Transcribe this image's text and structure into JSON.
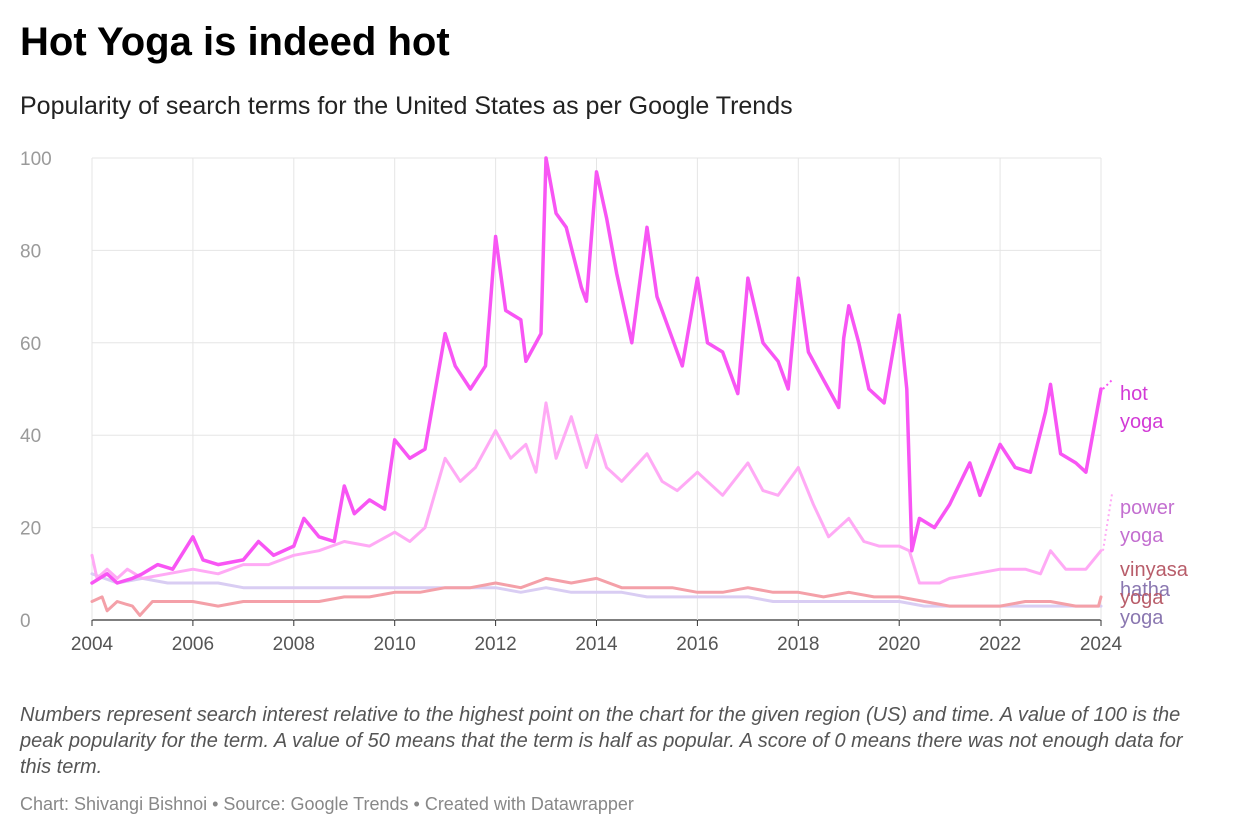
{
  "header": {
    "title": "Hot Yoga is indeed hot",
    "subtitle": "Popularity of search terms for the United States as per Google Trends"
  },
  "notes": "Numbers represent search interest relative to the highest point on the chart for the given region (US) and time. A value of 100 is the peak popularity for the term. A value of 50 means that the term is half as popular. A score of 0 means there was not enough data for this term.",
  "footer": {
    "byline": "Chart: Shivangi Bishnoi • Source: Google Trends • Created with Datawrapper"
  },
  "chart_data": {
    "type": "line",
    "xlim": [
      2004,
      2024
    ],
    "ylim": [
      0,
      100
    ],
    "grid": true,
    "x_ticks": [
      "2004",
      "2006",
      "2008",
      "2010",
      "2012",
      "2014",
      "2016",
      "2018",
      "2020",
      "2022",
      "2024"
    ],
    "y_ticks": [
      "0",
      "20",
      "40",
      "60",
      "80",
      "100"
    ],
    "series": [
      {
        "name": "hatha yoga",
        "label_lines": [
          "hatha",
          "yoga"
        ],
        "color": "#d9cdf3",
        "label_color": "#8a77b0",
        "width": 3,
        "points": [
          [
            2004,
            10
          ],
          [
            2004.5,
            8
          ],
          [
            2005,
            9
          ],
          [
            2005.5,
            8
          ],
          [
            2006,
            8
          ],
          [
            2006.5,
            8
          ],
          [
            2007,
            7
          ],
          [
            2007.5,
            7
          ],
          [
            2008,
            7
          ],
          [
            2008.5,
            7
          ],
          [
            2009,
            7
          ],
          [
            2009.5,
            7
          ],
          [
            2010,
            7
          ],
          [
            2010.5,
            7
          ],
          [
            2011,
            7
          ],
          [
            2011.5,
            7
          ],
          [
            2012,
            7
          ],
          [
            2012.5,
            6
          ],
          [
            2013,
            7
          ],
          [
            2013.5,
            6
          ],
          [
            2014,
            6
          ],
          [
            2014.5,
            6
          ],
          [
            2015,
            5
          ],
          [
            2015.5,
            5
          ],
          [
            2016,
            5
          ],
          [
            2016.5,
            5
          ],
          [
            2017,
            5
          ],
          [
            2017.5,
            4
          ],
          [
            2018,
            4
          ],
          [
            2018.5,
            4
          ],
          [
            2019,
            4
          ],
          [
            2019.5,
            4
          ],
          [
            2020,
            4
          ],
          [
            2020.5,
            3
          ],
          [
            2021,
            3
          ],
          [
            2021.5,
            3
          ],
          [
            2022,
            3
          ],
          [
            2022.5,
            3
          ],
          [
            2023,
            3
          ],
          [
            2023.5,
            3
          ],
          [
            2024,
            3
          ]
        ]
      },
      {
        "name": "vinyasa yoga",
        "label_lines": [
          "vinyasa",
          "yoga"
        ],
        "color": "#f4a0a8",
        "label_color": "#b85d6a",
        "width": 3,
        "points": [
          [
            2004,
            4
          ],
          [
            2004.2,
            5
          ],
          [
            2004.3,
            2
          ],
          [
            2004.5,
            4
          ],
          [
            2004.8,
            3
          ],
          [
            2004.95,
            1
          ],
          [
            2005.2,
            4
          ],
          [
            2005.5,
            4
          ],
          [
            2006,
            4
          ],
          [
            2006.5,
            3
          ],
          [
            2007,
            4
          ],
          [
            2007.5,
            4
          ],
          [
            2008,
            4
          ],
          [
            2008.5,
            4
          ],
          [
            2009,
            5
          ],
          [
            2009.5,
            5
          ],
          [
            2010,
            6
          ],
          [
            2010.5,
            6
          ],
          [
            2011,
            7
          ],
          [
            2011.5,
            7
          ],
          [
            2012,
            8
          ],
          [
            2012.5,
            7
          ],
          [
            2013,
            9
          ],
          [
            2013.5,
            8
          ],
          [
            2014,
            9
          ],
          [
            2014.5,
            7
          ],
          [
            2015,
            7
          ],
          [
            2015.5,
            7
          ],
          [
            2016,
            6
          ],
          [
            2016.5,
            6
          ],
          [
            2017,
            7
          ],
          [
            2017.5,
            6
          ],
          [
            2018,
            6
          ],
          [
            2018.5,
            5
          ],
          [
            2019,
            6
          ],
          [
            2019.5,
            5
          ],
          [
            2020,
            5
          ],
          [
            2020.5,
            4
          ],
          [
            2021,
            3
          ],
          [
            2021.5,
            3
          ],
          [
            2022,
            3
          ],
          [
            2022.5,
            4
          ],
          [
            2023,
            4
          ],
          [
            2023.5,
            3
          ],
          [
            2023.95,
            3
          ],
          [
            2024,
            5
          ]
        ]
      },
      {
        "name": "power yoga",
        "label_lines": [
          "power",
          "yoga"
        ],
        "color": "#ffaaf5",
        "label_color": "#c36fd0",
        "width": 3,
        "points": [
          [
            2004,
            14
          ],
          [
            2004.1,
            9
          ],
          [
            2004.3,
            11
          ],
          [
            2004.5,
            9
          ],
          [
            2004.7,
            11
          ],
          [
            2005,
            9
          ],
          [
            2005.5,
            10
          ],
          [
            2006,
            11
          ],
          [
            2006.5,
            10
          ],
          [
            2007,
            12
          ],
          [
            2007.5,
            12
          ],
          [
            2008,
            14
          ],
          [
            2008.5,
            15
          ],
          [
            2009,
            17
          ],
          [
            2009.5,
            16
          ],
          [
            2010,
            19
          ],
          [
            2010.3,
            17
          ],
          [
            2010.6,
            20
          ],
          [
            2011,
            35
          ],
          [
            2011.3,
            30
          ],
          [
            2011.6,
            33
          ],
          [
            2012,
            41
          ],
          [
            2012.3,
            35
          ],
          [
            2012.6,
            38
          ],
          [
            2012.8,
            32
          ],
          [
            2013,
            47
          ],
          [
            2013.2,
            35
          ],
          [
            2013.5,
            44
          ],
          [
            2013.8,
            33
          ],
          [
            2014,
            40
          ],
          [
            2014.2,
            33
          ],
          [
            2014.5,
            30
          ],
          [
            2015,
            36
          ],
          [
            2015.3,
            30
          ],
          [
            2015.6,
            28
          ],
          [
            2016,
            32
          ],
          [
            2016.5,
            27
          ],
          [
            2017,
            34
          ],
          [
            2017.3,
            28
          ],
          [
            2017.6,
            27
          ],
          [
            2018,
            33
          ],
          [
            2018.3,
            25
          ],
          [
            2018.6,
            18
          ],
          [
            2019,
            22
          ],
          [
            2019.3,
            17
          ],
          [
            2019.6,
            16
          ],
          [
            2020,
            16
          ],
          [
            2020.2,
            15
          ],
          [
            2020.4,
            8
          ],
          [
            2020.8,
            8
          ],
          [
            2021,
            9
          ],
          [
            2021.5,
            10
          ],
          [
            2022,
            11
          ],
          [
            2022.5,
            11
          ],
          [
            2022.8,
            10
          ],
          [
            2023,
            15
          ],
          [
            2023.3,
            11
          ],
          [
            2023.7,
            11
          ],
          [
            2024,
            15
          ]
        ]
      },
      {
        "name": "hot yoga",
        "label_lines": [
          "hot",
          "yoga"
        ],
        "color": "#f855f4",
        "label_color": "#d23ad6",
        "width": 3.5,
        "points": [
          [
            2004,
            8
          ],
          [
            2004.3,
            10
          ],
          [
            2004.5,
            8
          ],
          [
            2004.8,
            9
          ],
          [
            2005,
            10
          ],
          [
            2005.3,
            12
          ],
          [
            2005.6,
            11
          ],
          [
            2006,
            18
          ],
          [
            2006.2,
            13
          ],
          [
            2006.5,
            12
          ],
          [
            2007,
            13
          ],
          [
            2007.3,
            17
          ],
          [
            2007.6,
            14
          ],
          [
            2008,
            16
          ],
          [
            2008.2,
            22
          ],
          [
            2008.5,
            18
          ],
          [
            2008.8,
            17
          ],
          [
            2009,
            29
          ],
          [
            2009.2,
            23
          ],
          [
            2009.5,
            26
          ],
          [
            2009.8,
            24
          ],
          [
            2010,
            39
          ],
          [
            2010.3,
            35
          ],
          [
            2010.6,
            37
          ],
          [
            2011,
            62
          ],
          [
            2011.2,
            55
          ],
          [
            2011.5,
            50
          ],
          [
            2011.8,
            55
          ],
          [
            2012,
            83
          ],
          [
            2012.2,
            67
          ],
          [
            2012.5,
            65
          ],
          [
            2012.6,
            56
          ],
          [
            2012.9,
            62
          ],
          [
            2013,
            100
          ],
          [
            2013.2,
            88
          ],
          [
            2013.4,
            85
          ],
          [
            2013.7,
            72
          ],
          [
            2013.8,
            69
          ],
          [
            2014,
            97
          ],
          [
            2014.2,
            87
          ],
          [
            2014.4,
            75
          ],
          [
            2014.7,
            60
          ],
          [
            2015,
            85
          ],
          [
            2015.2,
            70
          ],
          [
            2015.5,
            61
          ],
          [
            2015.7,
            55
          ],
          [
            2016,
            74
          ],
          [
            2016.2,
            60
          ],
          [
            2016.5,
            58
          ],
          [
            2016.8,
            49
          ],
          [
            2017,
            74
          ],
          [
            2017.3,
            60
          ],
          [
            2017.6,
            56
          ],
          [
            2017.8,
            50
          ],
          [
            2018,
            74
          ],
          [
            2018.2,
            58
          ],
          [
            2018.5,
            52
          ],
          [
            2018.8,
            46
          ],
          [
            2018.9,
            61
          ],
          [
            2019,
            68
          ],
          [
            2019.2,
            60
          ],
          [
            2019.4,
            50
          ],
          [
            2019.7,
            47
          ],
          [
            2020,
            66
          ],
          [
            2020.15,
            50
          ],
          [
            2020.25,
            15
          ],
          [
            2020.4,
            22
          ],
          [
            2020.7,
            20
          ],
          [
            2021,
            25
          ],
          [
            2021.4,
            34
          ],
          [
            2021.6,
            27
          ],
          [
            2022,
            38
          ],
          [
            2022.3,
            33
          ],
          [
            2022.6,
            32
          ],
          [
            2022.9,
            45
          ],
          [
            2023,
            51
          ],
          [
            2023.2,
            36
          ],
          [
            2023.5,
            34
          ],
          [
            2023.7,
            32
          ],
          [
            2024,
            50
          ]
        ]
      }
    ]
  }
}
